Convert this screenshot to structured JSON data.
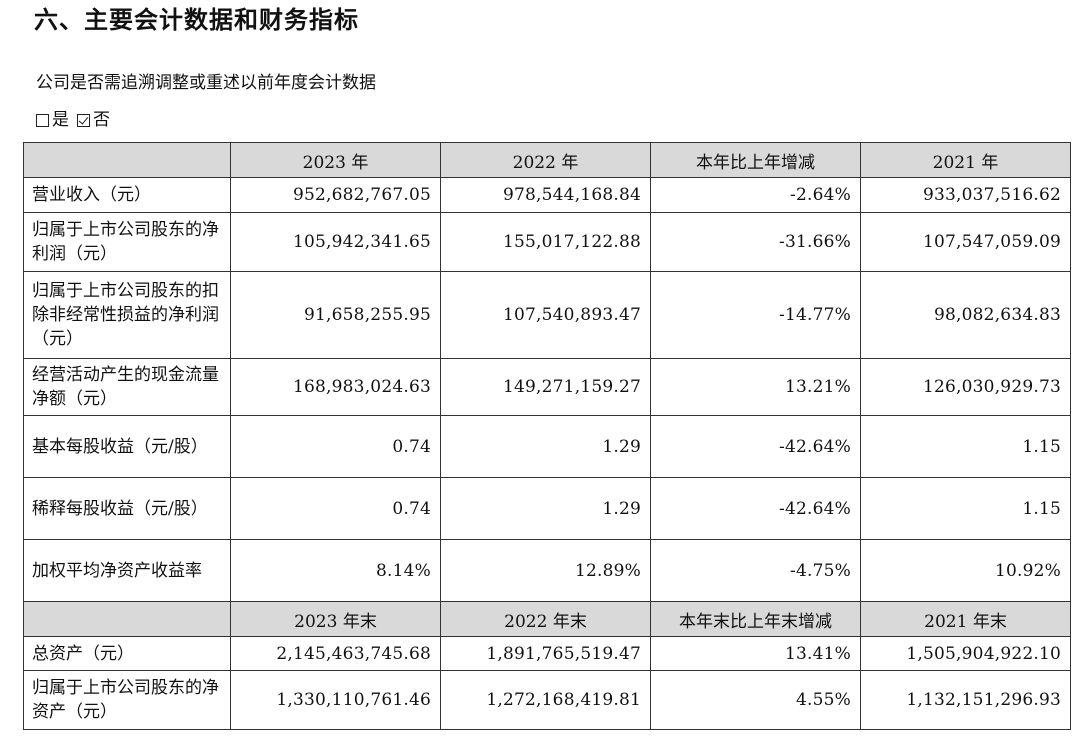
{
  "heading": "六、主要会计数据和财务指标",
  "question": "公司是否需追溯调整或重述以前年度会计数据",
  "options": [
    {
      "label": "是",
      "checked": false
    },
    {
      "label": "否",
      "checked": true
    }
  ],
  "table": {
    "header1": [
      "2023 年",
      "2022 年",
      "本年比上年增减",
      "2021 年"
    ],
    "rows1": [
      {
        "label": "营业收入（元）",
        "values": [
          "952,682,767.05",
          "978,544,168.84",
          "-2.64%",
          "933,037,516.62"
        ]
      },
      {
        "label": "归属于上市公司股东的净利润（元）",
        "values": [
          "105,942,341.65",
          "155,017,122.88",
          "-31.66%",
          "107,547,059.09"
        ]
      },
      {
        "label": "归属于上市公司股东的扣除非经常性损益的净利润（元）",
        "values": [
          "91,658,255.95",
          "107,540,893.47",
          "-14.77%",
          "98,082,634.83"
        ]
      },
      {
        "label": "经营活动产生的现金流量净额（元）",
        "values": [
          "168,983,024.63",
          "149,271,159.27",
          "13.21%",
          "126,030,929.73"
        ]
      },
      {
        "label": "基本每股收益（元/股）",
        "values": [
          "0.74",
          "1.29",
          "-42.64%",
          "1.15"
        ]
      },
      {
        "label": "稀释每股收益（元/股）",
        "values": [
          "0.74",
          "1.29",
          "-42.64%",
          "1.15"
        ]
      },
      {
        "label": "加权平均净资产收益率",
        "values": [
          "8.14%",
          "12.89%",
          "-4.75%",
          "10.92%"
        ]
      }
    ],
    "header2": [
      "2023 年末",
      "2022 年末",
      "本年末比上年末增减",
      "2021 年末"
    ],
    "rows2": [
      {
        "label": "总资产（元）",
        "values": [
          "2,145,463,745.68",
          "1,891,765,519.47",
          "13.41%",
          "1,505,904,922.10"
        ]
      },
      {
        "label": "归属于上市公司股东的净资产（元）",
        "values": [
          "1,330,110,761.46",
          "1,272,168,419.81",
          "4.55%",
          "1,132,151,296.93"
        ]
      }
    ]
  }
}
